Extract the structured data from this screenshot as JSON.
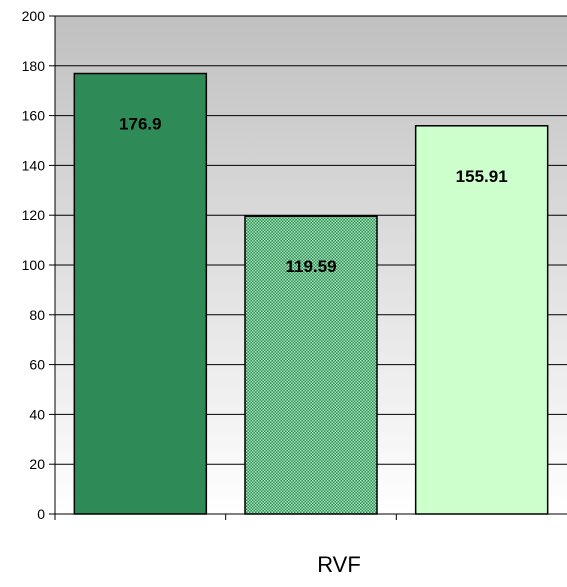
{
  "chart_data": {
    "type": "bar",
    "categories": [
      "RVF"
    ],
    "series": [
      {
        "values": [
          176.9
        ],
        "label": "176.9",
        "color": "#2e8b57",
        "pattern": "solid"
      },
      {
        "values": [
          119.59
        ],
        "label": "119.59",
        "color": "#3cb371",
        "pattern": "dotted"
      },
      {
        "values": [
          155.91
        ],
        "label": "155.91",
        "color": "#ccffcc",
        "pattern": "solid"
      }
    ],
    "title": "",
    "xlabel": "",
    "ylabel": "",
    "ylim": [
      0,
      200
    ],
    "yticks": [
      0,
      20,
      40,
      60,
      80,
      100,
      120,
      140,
      160,
      180,
      200
    ],
    "ytick_labels": [
      "0",
      "20",
      "40",
      "60",
      "80",
      "100",
      "120",
      "140",
      "160",
      "180",
      "200"
    ],
    "grid": true,
    "legend": "none",
    "plot_background": {
      "top": "#c0c0c0",
      "bottom": "#ffffff"
    }
  }
}
